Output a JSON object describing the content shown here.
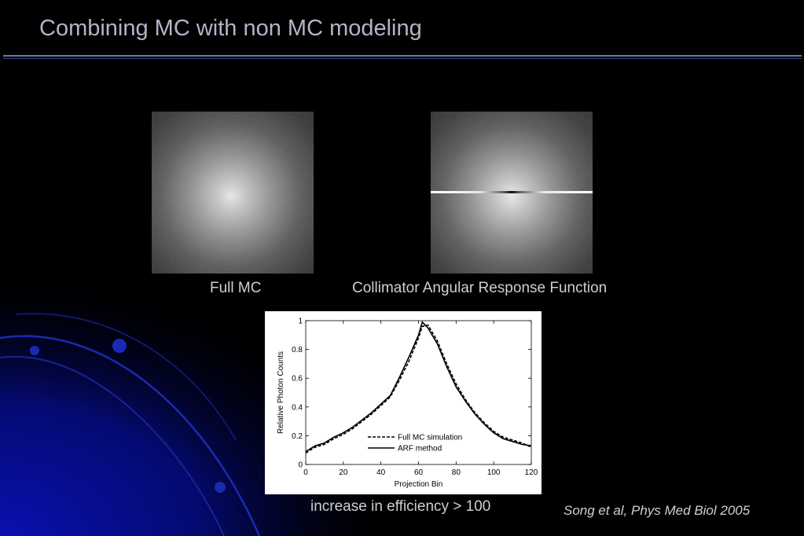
{
  "slide": {
    "title": "Combining MC with non MC modeling",
    "caption_left": "Full MC",
    "caption_right": "Collimator Angular Response Function",
    "efficiency": "increase in efficiency > 100",
    "citation": "Song et al, Phys Med Biol 2005"
  },
  "chart_data": {
    "type": "line",
    "title": "",
    "xlabel": "Projection Bin",
    "ylabel": "Relative Photon Counts",
    "xlim": [
      0,
      120
    ],
    "ylim": [
      0,
      1
    ],
    "xticks": [
      "0",
      "20",
      "40",
      "60",
      "80",
      "100",
      "120"
    ],
    "yticks": [
      "0",
      "0.2",
      "0.4",
      "0.6",
      "0.8",
      "1"
    ],
    "legend": "inside-lower-center",
    "grid": false,
    "series": [
      {
        "name": "Full MC simulation",
        "style": "dashed",
        "x": [
          0,
          5,
          10,
          15,
          20,
          25,
          30,
          35,
          40,
          45,
          50,
          55,
          60,
          62,
          65,
          70,
          75,
          80,
          85,
          90,
          95,
          100,
          105,
          110,
          115,
          120
        ],
        "y": [
          0.08,
          0.12,
          0.14,
          0.18,
          0.21,
          0.25,
          0.3,
          0.35,
          0.41,
          0.47,
          0.59,
          0.72,
          0.88,
          0.96,
          0.97,
          0.86,
          0.7,
          0.56,
          0.45,
          0.36,
          0.29,
          0.23,
          0.19,
          0.17,
          0.15,
          0.12
        ]
      },
      {
        "name": "ARF method",
        "style": "solid",
        "x": [
          0,
          5,
          10,
          15,
          20,
          25,
          30,
          35,
          40,
          45,
          50,
          55,
          60,
          62,
          65,
          70,
          75,
          80,
          85,
          90,
          95,
          100,
          105,
          110,
          115,
          120
        ],
        "y": [
          0.09,
          0.13,
          0.15,
          0.19,
          0.22,
          0.26,
          0.31,
          0.36,
          0.42,
          0.48,
          0.61,
          0.75,
          0.9,
          0.99,
          0.95,
          0.84,
          0.68,
          0.54,
          0.44,
          0.35,
          0.28,
          0.22,
          0.18,
          0.16,
          0.14,
          0.13
        ]
      }
    ]
  }
}
